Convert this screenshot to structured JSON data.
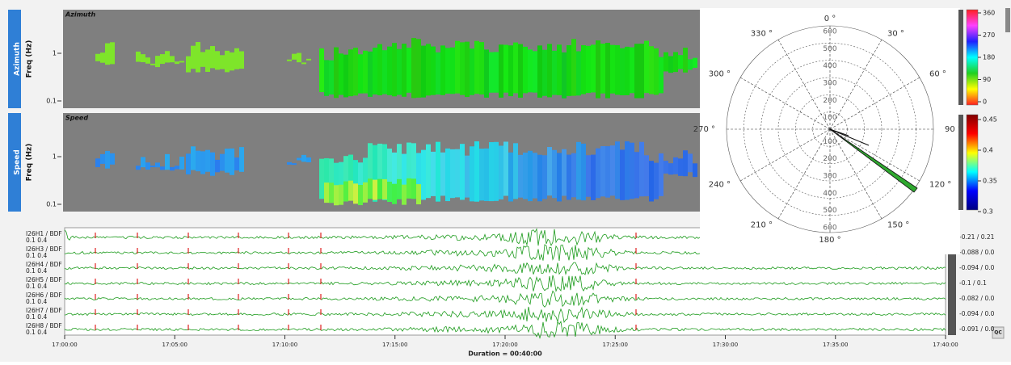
{
  "panels": [
    {
      "tab": "Azimuth",
      "axis_label": "Freq (Hz)",
      "title": "Azimuth",
      "yticks": [
        "1",
        "0.1"
      ]
    },
    {
      "tab": "Speed",
      "axis_label": "Freq (Hz)",
      "title": "Speed",
      "yticks": [
        "1",
        "0.1"
      ]
    }
  ],
  "polar": {
    "angle_labels": [
      "0 °",
      "30 °",
      "60 °",
      "90 °",
      "120 °",
      "150 °",
      "180 °",
      "210 °",
      "240 °",
      "270 °",
      "300 °",
      "330 °"
    ],
    "radius_labels": [
      "100",
      "200",
      "300",
      "400",
      "500",
      "600"
    ]
  },
  "colorbars": [
    {
      "labels": [
        "360",
        "270",
        "180",
        "90",
        "0"
      ]
    },
    {
      "labels": [
        "0.45",
        "0.4",
        "0.35",
        "0.3"
      ]
    }
  ],
  "traces": [
    {
      "name": "I26H1 / BDF",
      "filter": "0.1 0.4",
      "range": "-0.21 / 0.21"
    },
    {
      "name": "I26H3 / BDF",
      "filter": "0.1 0.4",
      "range": "-0.088 / 0.0"
    },
    {
      "name": "I26H4 / BDF",
      "filter": "0.1 0.4",
      "range": "-0.094 / 0.0"
    },
    {
      "name": "I26H5 / BDF",
      "filter": "0.1 0.4",
      "range": "-0.1 / 0.1"
    },
    {
      "name": "I26H6 / BDF",
      "filter": "0.1 0.4",
      "range": "-0.082 / 0.0"
    },
    {
      "name": "I26H7 / BDF",
      "filter": "0.1 0.4",
      "range": "-0.094 / 0.0"
    },
    {
      "name": "I26H8 / BDF",
      "filter": "0.1 0.4",
      "range": "-0.091 / 0.0"
    }
  ],
  "time_axis": {
    "ticks": [
      "17:00:00",
      "17:05:00",
      "17:10:00",
      "17:15:00",
      "17:20:00",
      "17:25:00",
      "17:30:00",
      "17:35:00",
      "17:40:00"
    ],
    "duration": "Duration = 00:40:00"
  },
  "toolbar": {
    "qc": "QC"
  }
}
